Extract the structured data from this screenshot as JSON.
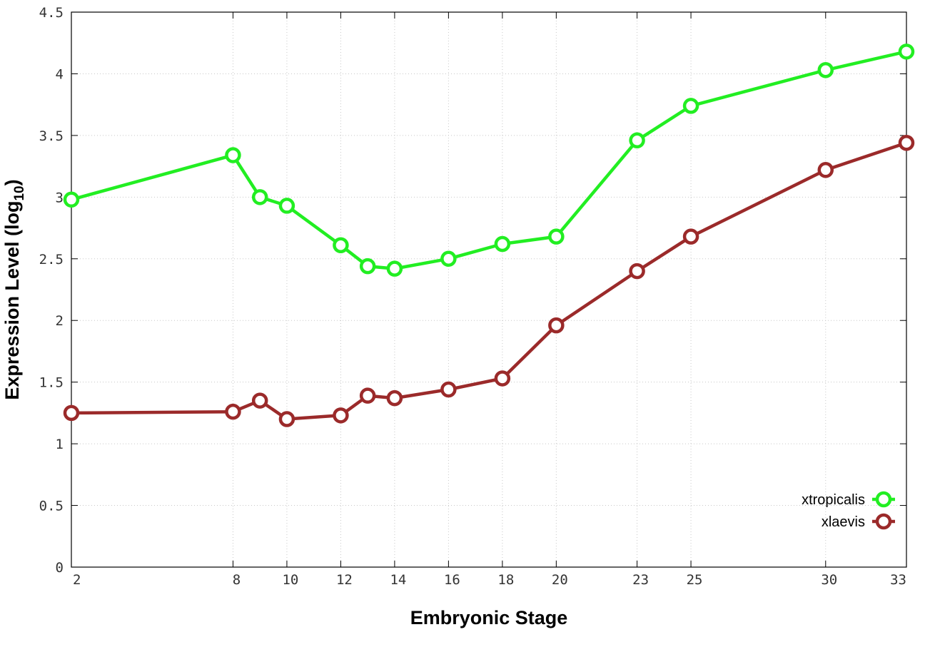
{
  "chart_data": {
    "type": "line",
    "xlabel": "Embryonic Stage",
    "ylabel_main": "Expression Level (log",
    "ylabel_sub": "10",
    "ylabel_close": ")",
    "xlim": [
      2,
      33
    ],
    "ylim": [
      0,
      4.5
    ],
    "x_ticks": [
      2,
      8,
      10,
      12,
      14,
      16,
      18,
      20,
      23,
      25,
      30,
      33
    ],
    "x_tick_labels": [
      "2",
      "8",
      "10",
      "12",
      "14",
      "16",
      "18",
      "20",
      "23",
      "25",
      "30",
      "33"
    ],
    "y_ticks": [
      0,
      0.5,
      1,
      1.5,
      2,
      2.5,
      3,
      3.5,
      4,
      4.5
    ],
    "y_tick_labels": [
      "0",
      "0.5",
      "1",
      "1.5",
      "2",
      "2.5",
      "3",
      "3.5",
      "4",
      "4.5"
    ],
    "grid": true,
    "legend_position": "bottom-right",
    "series": [
      {
        "name": "xtropicalis",
        "color": "#22ee22",
        "x": [
          2,
          8,
          9,
          10,
          12,
          13,
          14,
          16,
          18,
          20,
          23,
          25,
          30,
          33
        ],
        "y": [
          2.98,
          3.34,
          3.0,
          2.93,
          2.61,
          2.44,
          2.42,
          2.5,
          2.62,
          2.68,
          3.46,
          3.74,
          4.03,
          4.18
        ]
      },
      {
        "name": "xlaevis",
        "color": "#9b2a2a",
        "x": [
          2,
          8,
          9,
          10,
          12,
          13,
          14,
          16,
          18,
          20,
          23,
          25,
          30,
          33
        ],
        "y": [
          1.25,
          1.26,
          1.35,
          1.2,
          1.23,
          1.39,
          1.37,
          1.44,
          1.53,
          1.96,
          2.4,
          2.68,
          3.22,
          3.44
        ]
      }
    ]
  }
}
